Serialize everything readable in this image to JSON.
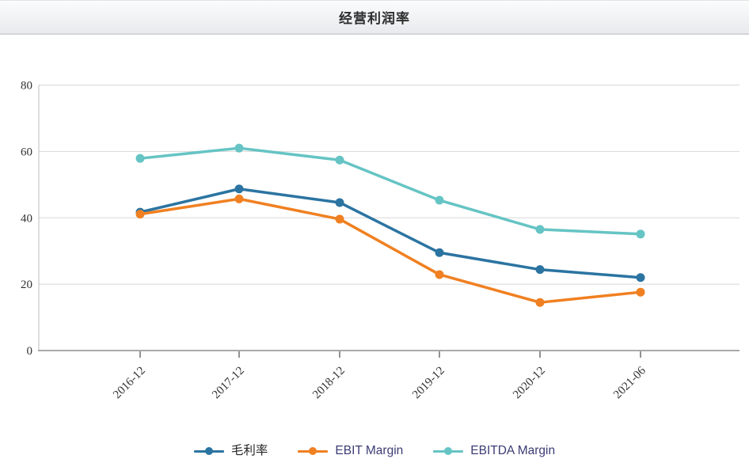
{
  "header": {
    "title": "经营利润率"
  },
  "chart_data": {
    "type": "line",
    "title": "经营利润率",
    "x": [
      "2016-12",
      "2017-12",
      "2018-12",
      "2019-12",
      "2020-12",
      "2021-06"
    ],
    "yticks": [
      0,
      20,
      40,
      60,
      80
    ],
    "ylim": [
      0,
      80
    ],
    "grid": true,
    "legend_position": "bottom",
    "series": [
      {
        "name": "毛利率",
        "slug": "gross-margin",
        "color": "#2b74a1",
        "label_color": "#262626",
        "values": [
          41.7,
          48.7,
          44.6,
          29.5,
          24.4,
          22.0
        ]
      },
      {
        "name": "EBIT Margin",
        "slug": "ebit-margin",
        "color": "#f08021",
        "label_color": "#3c3c74",
        "values": [
          41.1,
          45.7,
          39.6,
          22.9,
          14.5,
          17.6
        ]
      },
      {
        "name": "EBITDA Margin",
        "slug": "ebitda-margin",
        "color": "#66c4c4",
        "label_color": "#3c3c74",
        "values": [
          57.9,
          61.0,
          57.4,
          45.3,
          36.5,
          35.1
        ]
      }
    ]
  }
}
